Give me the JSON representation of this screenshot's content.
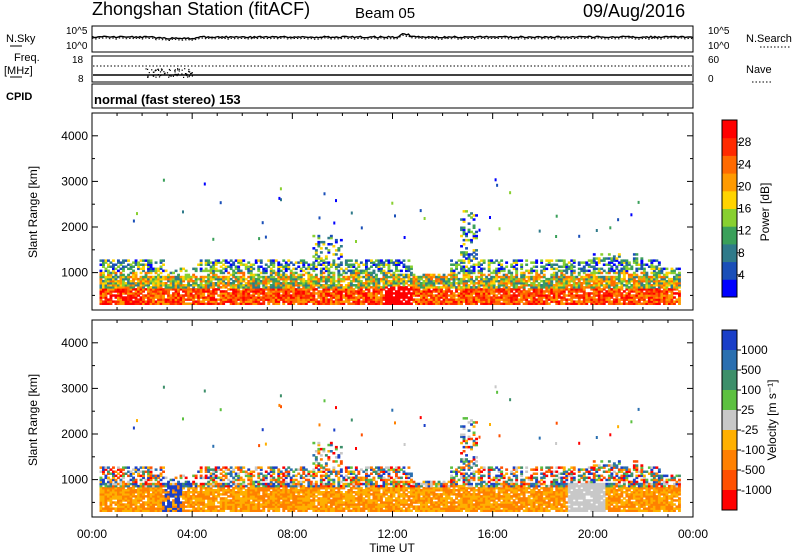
{
  "header": {
    "title": "Zhongshan Station (fitACF)",
    "beam": "Beam 05",
    "date": "09/Aug/2016"
  },
  "top_panels": {
    "nsky_label": "N.Sky",
    "nsearch_label": "N.Search",
    "left_ticks_top": [
      "10^5",
      "10^0"
    ],
    "right_ticks_top": [
      "10^5",
      "10^0"
    ],
    "freq_label": "Freq.",
    "freq_unit": "[MHz]",
    "left_ticks_freq": [
      "18",
      "8"
    ],
    "right_ticks_nave": [
      "60",
      "0"
    ],
    "nave_label": "Nave",
    "cpid_label": "CPID",
    "cpid_text": "normal (fast stereo) 153"
  },
  "colors": {
    "power_scale": [
      "#0000ff",
      "#1a4fb8",
      "#2f7a8a",
      "#3aa05a",
      "#88d030",
      "#ffd400",
      "#ff9a00",
      "#ff6a00",
      "#ff2a00",
      "#ff0000"
    ],
    "velocity_scale": [
      "#1a3fc8",
      "#2a6fb0",
      "#3d8f6a",
      "#5cc040",
      "#c8c8c8",
      "#ffb000",
      "#ff8000",
      "#ff5000",
      "#ff0000"
    ]
  },
  "chart_data": [
    {
      "type": "heatmap",
      "panel": "power",
      "ylabel": "Slant Range [km]",
      "ylim": [
        180,
        4500
      ],
      "y_ticks": [
        "1000",
        "2000",
        "3000",
        "4000"
      ],
      "colorbar_label": "Power [dB]",
      "colorbar_ticks": [
        "4",
        "8",
        "12",
        "16",
        "20",
        "24",
        "28"
      ],
      "colorbar_range": [
        0,
        32
      ]
    },
    {
      "type": "heatmap",
      "panel": "velocity",
      "ylabel": "Slant Range [km]",
      "ylim": [
        180,
        4500
      ],
      "y_ticks": [
        "1000",
        "2000",
        "3000",
        "4000"
      ],
      "colorbar_label": "Velocity [m s⁻¹]",
      "colorbar_ticks": [
        "1000",
        "500",
        "100",
        "25",
        "-25",
        "-100",
        "-500",
        "-1000"
      ]
    }
  ],
  "x_axis": {
    "label": "Time UT",
    "ticks": [
      "00:00",
      "04:00",
      "08:00",
      "12:00",
      "16:00",
      "20:00",
      "00:00"
    ],
    "range_hours": [
      0,
      24
    ]
  }
}
